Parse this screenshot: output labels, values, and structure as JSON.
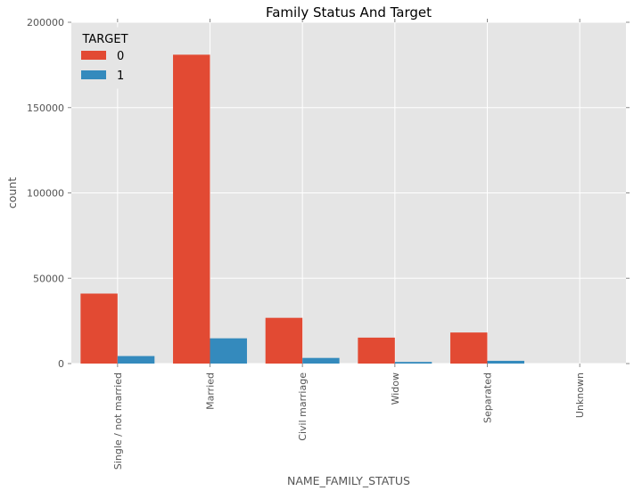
{
  "chart_data": {
    "type": "bar",
    "title": "Family Status And Target",
    "xlabel": "NAME_FAMILY_STATUS",
    "ylabel": "count",
    "ylim": [
      0,
      200000
    ],
    "yticks": [
      "0",
      "50000",
      "100000",
      "150000",
      "200000"
    ],
    "yticks_values": [
      0,
      50000,
      100000,
      150000,
      200000
    ],
    "grid": true,
    "legend": {
      "title": "TARGET",
      "placement": "top-left"
    },
    "categories": [
      "Single / not married",
      "Married",
      "Civil marriage",
      "Widow",
      "Separated",
      "Unknown"
    ],
    "series": [
      {
        "name": "0",
        "color": "#E24A33",
        "values": [
          41000,
          181000,
          26800,
          15200,
          18200,
          2
        ]
      },
      {
        "name": "1",
        "color": "#348ABD",
        "values": [
          4400,
          14800,
          3300,
          950,
          1600,
          0
        ]
      }
    ]
  }
}
